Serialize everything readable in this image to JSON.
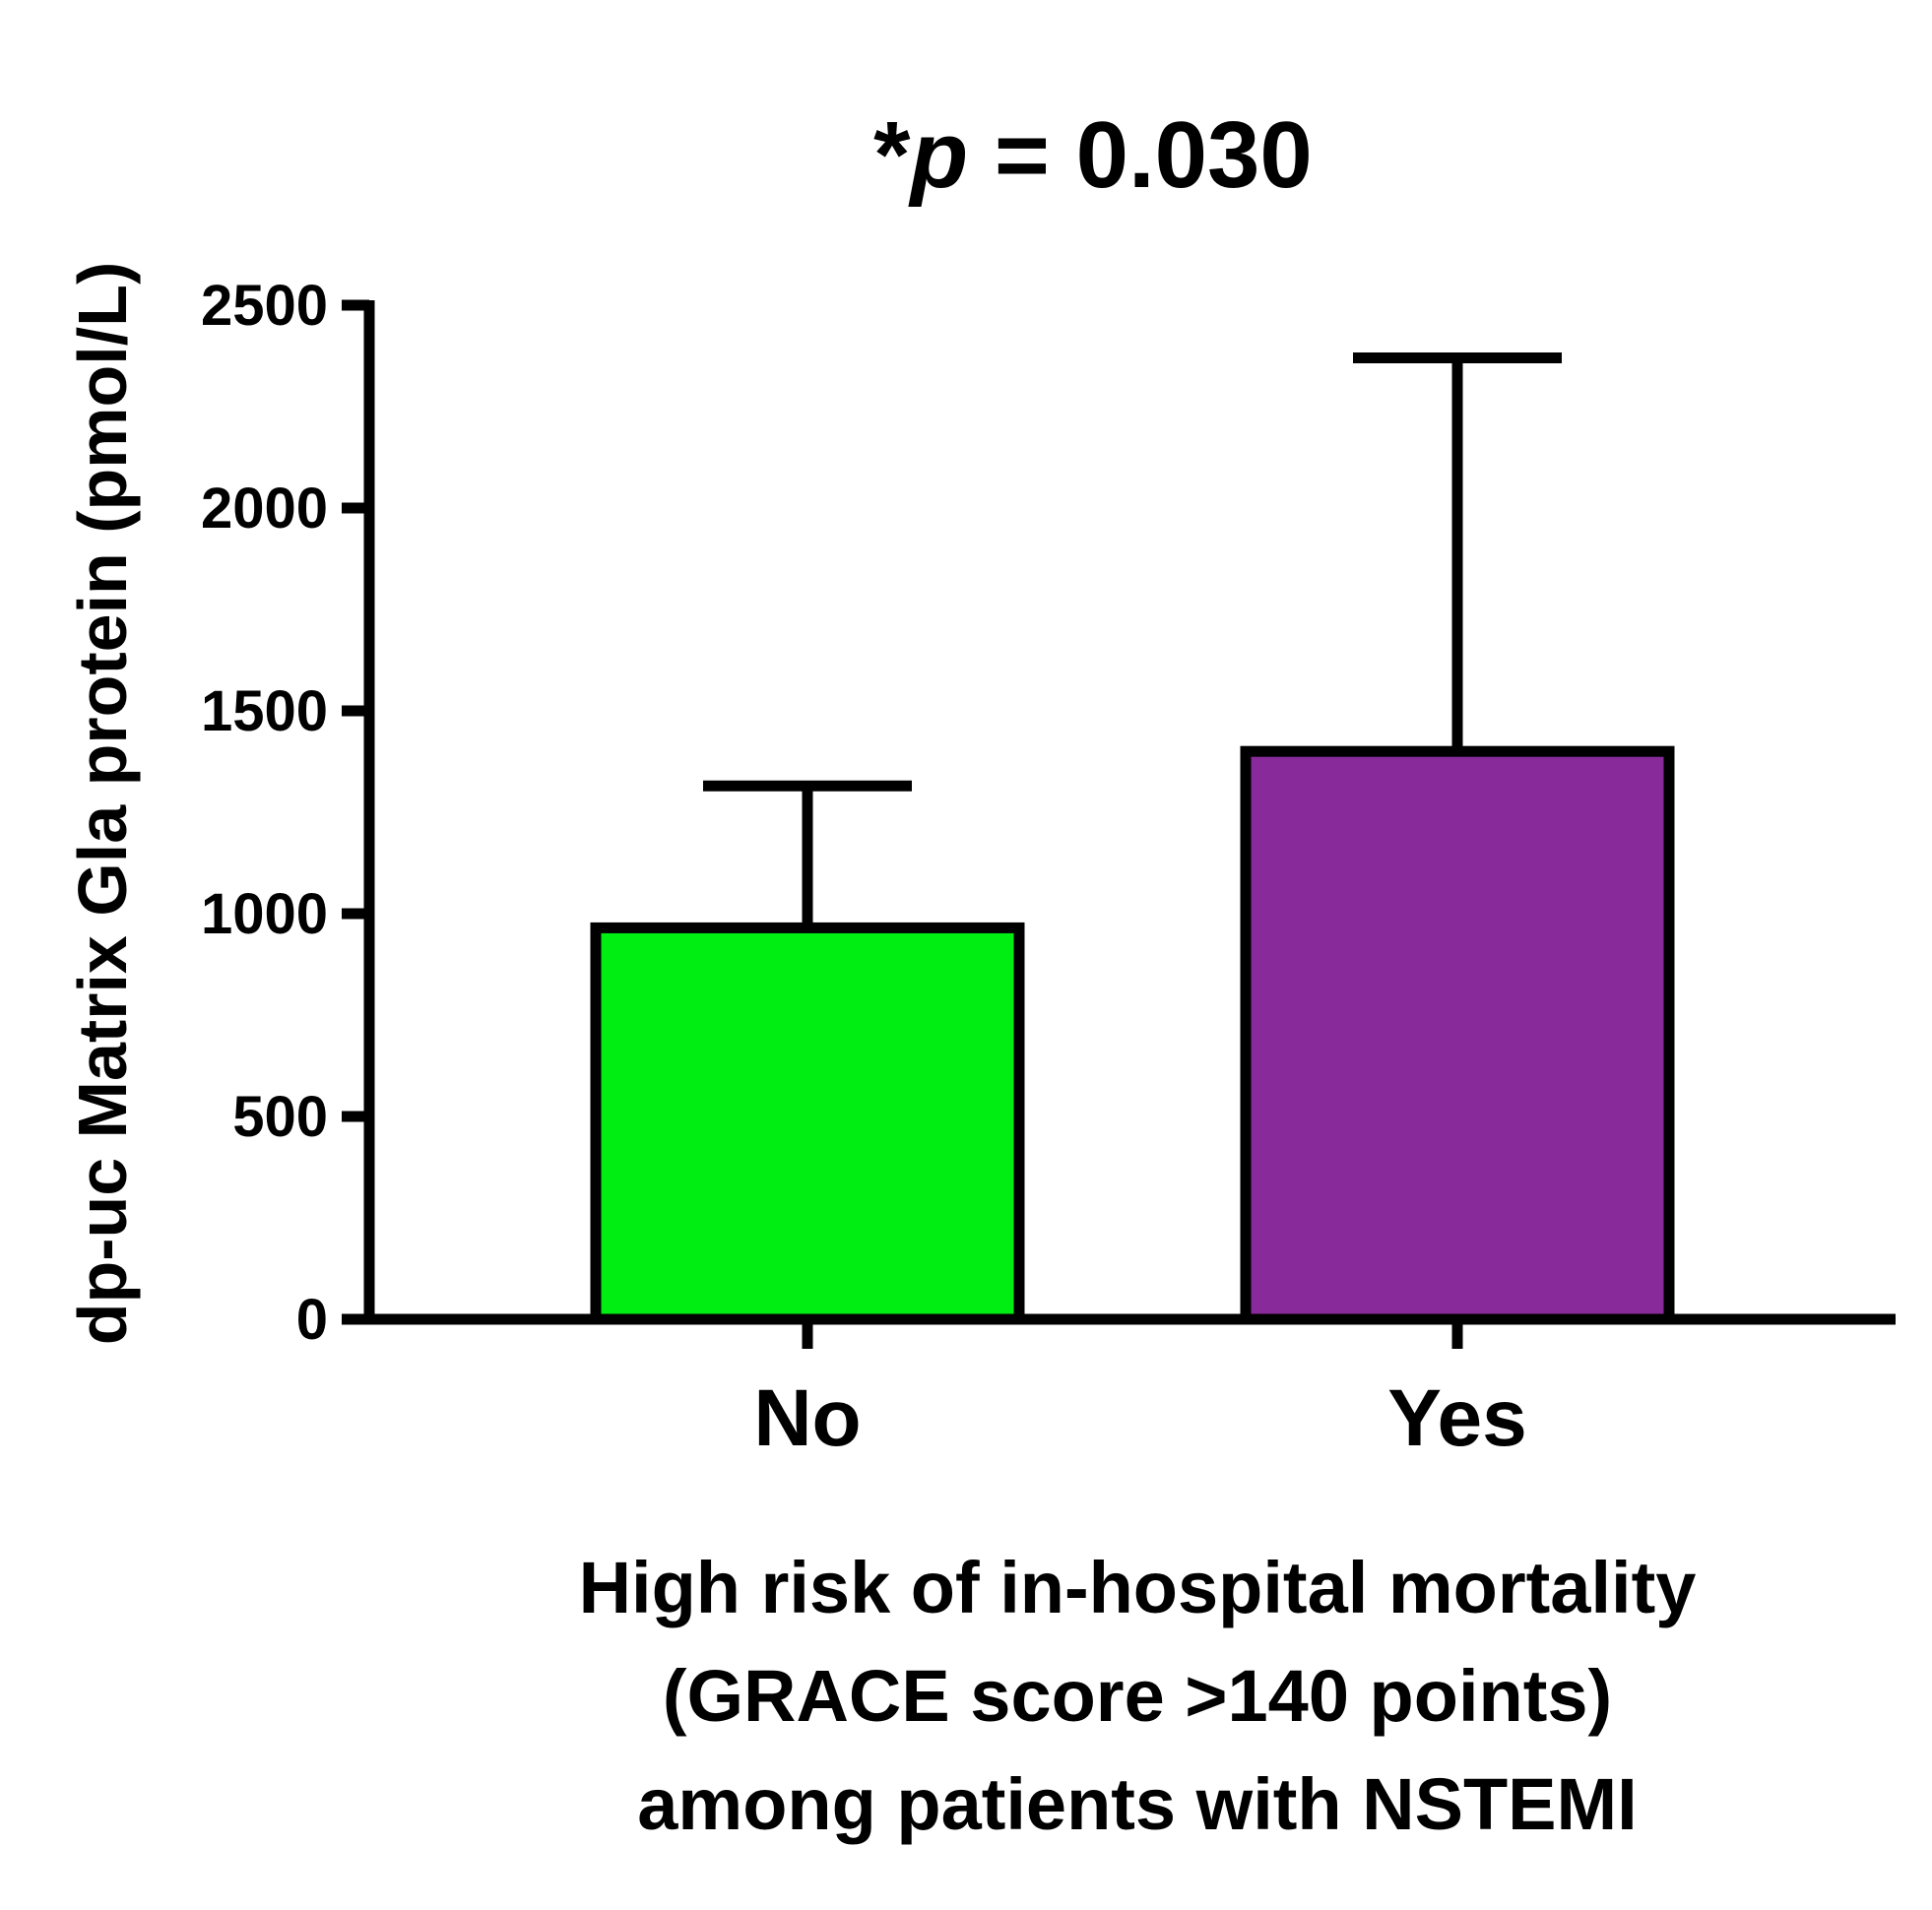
{
  "chart_data": {
    "type": "bar",
    "title": {
      "prefix": "*",
      "p": "p",
      "suffix": " = 0.030"
    },
    "ylabel": "dp-uc Matrix Gla protein (pmol/L)",
    "xlabel_lines": [
      "High risk of in-hospital mortality",
      "(GRACE score >140 points)",
      "among patients with NSTEMI"
    ],
    "categories": [
      "No",
      "Yes"
    ],
    "values": [
      965,
      1400
    ],
    "error_upper": [
      1315,
      2370
    ],
    "colors": [
      "#00ee11",
      "#882a99"
    ],
    "ylim": [
      0,
      2500
    ],
    "yticks": [
      0,
      500,
      1000,
      1500,
      2000,
      2500
    ],
    "grid": false,
    "legend": "none"
  }
}
